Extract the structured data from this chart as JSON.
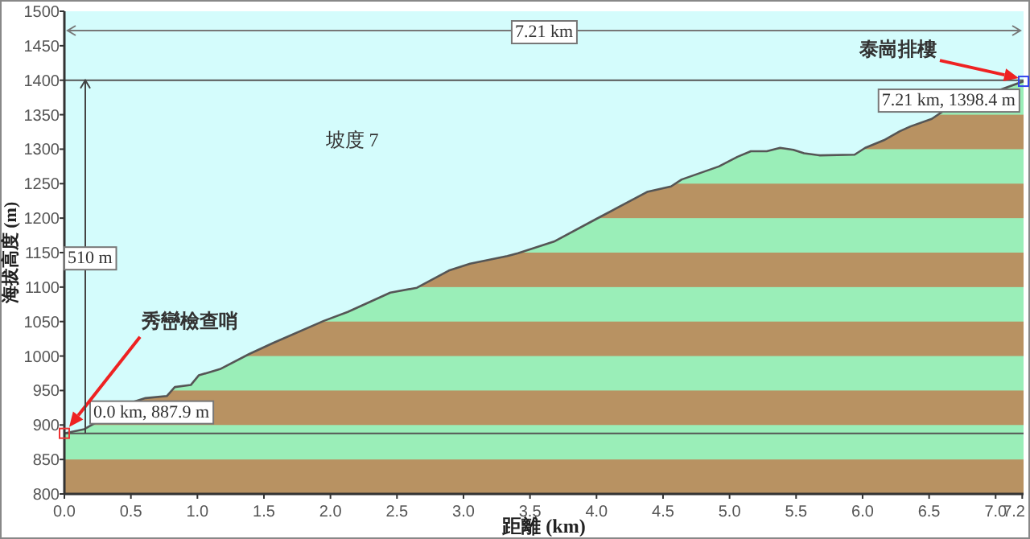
{
  "chart_data": {
    "type": "area",
    "xlabel": "距離 (km)",
    "ylabel": "海拔高度 (m)",
    "x": [
      0,
      0.15,
      0.51,
      0.61,
      0.77,
      0.83,
      0.95,
      1.01,
      1.17,
      1.39,
      1.57,
      1.95,
      2.13,
      2.37,
      2.45,
      2.65,
      2.89,
      3.05,
      3.33,
      3.41,
      3.68,
      4.0,
      4.38,
      4.56,
      4.64,
      4.92,
      5.06,
      5.16,
      5.28,
      5.38,
      5.48,
      5.56,
      5.68,
      5.94,
      6.02,
      6.16,
      6.28,
      6.36,
      6.52,
      6.62,
      7.21
    ],
    "series": [
      {
        "color": "#555555",
        "values": [
          887.9,
          894,
          933,
          939,
          942,
          955,
          958,
          972,
          981,
          1003,
          1019,
          1051,
          1064,
          1085,
          1092,
          1099,
          1124,
          1134,
          1145,
          1149,
          1166,
          1199,
          1238,
          1246,
          1256,
          1275,
          1289,
          1297,
          1297,
          1302,
          1299,
          1294,
          1291,
          1292,
          1302,
          1313,
          1326,
          1333,
          1344,
          1357,
          1398.4
        ]
      }
    ],
    "xlim": [
      0,
      7.21
    ],
    "ylim": [
      800,
      1500
    ],
    "xticks": [
      {
        "value": 0,
        "label": "0.0"
      },
      {
        "value": 0.5,
        "label": "0.5"
      },
      {
        "value": 1,
        "label": "1.0"
      },
      {
        "value": 1.5,
        "label": "1.5"
      },
      {
        "value": 2,
        "label": "2.0"
      },
      {
        "value": 2.5,
        "label": "2.5"
      },
      {
        "value": 3,
        "label": "3.0"
      },
      {
        "value": 3.5,
        "label": "3.5"
      },
      {
        "value": 4,
        "label": "4.0"
      },
      {
        "value": 4.5,
        "label": "4.5"
      },
      {
        "value": 5,
        "label": "5.0"
      },
      {
        "value": 5.5,
        "label": "5.5"
      },
      {
        "value": 6,
        "label": "6.0"
      },
      {
        "value": 6.5,
        "label": "6.5"
      },
      {
        "value": 7,
        "label": "7.0"
      },
      {
        "value": 7.2,
        "label": "7.2"
      }
    ],
    "yticks": [
      800,
      850,
      900,
      950,
      1000,
      1050,
      1100,
      1150,
      1200,
      1250,
      1300,
      1350,
      1400,
      1450,
      1500
    ],
    "ref_lines": [
      {
        "axis": "y",
        "value": 1400,
        "color": "#555555"
      },
      {
        "axis": "y",
        "value": 887.9,
        "color": "#555555"
      },
      {
        "axis": "y",
        "value": 1472,
        "label": "7.21 km",
        "color": "#777777"
      }
    ],
    "annotations": [
      "秀巒檢查哨",
      {
        "text": "0.0 km, 887.9 m",
        "x": 0,
        "y": 887.9
      },
      "泰崗排樓",
      {
        "text": "7.21 km, 1398.4 m",
        "x": 7.21,
        "y": 1398.4
      },
      "坡度 7",
      "510 m"
    ],
    "grid": false
  }
}
